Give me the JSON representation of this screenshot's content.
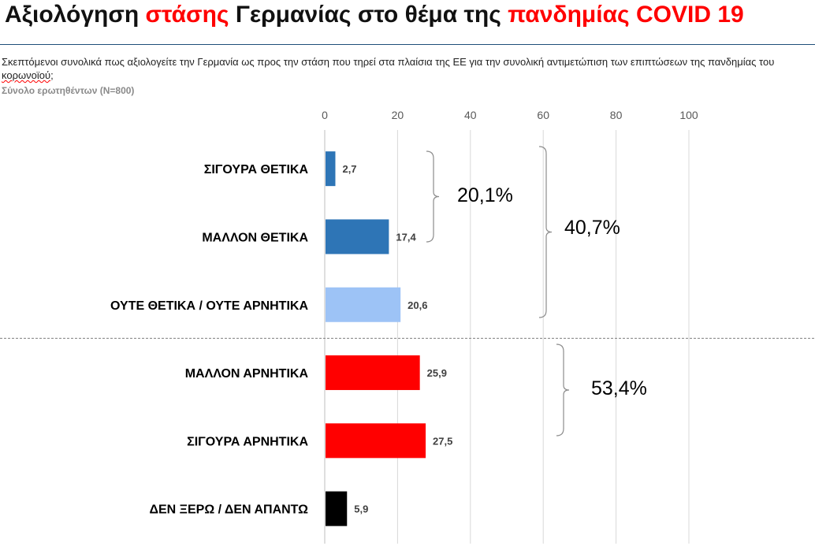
{
  "title": {
    "part1": "Αξιολόγηση ",
    "part2": "στάσης",
    "part3": " Γερμανίας στο θέμα της ",
    "part4": "πανδημίας COVID 19"
  },
  "question": {
    "text": "Σκεπτόμενοι συνολικά πως αξιολογείτε την Γερμανία ως προς την στάση που τηρεί στα πλαίσια της ΕΕ για την συνολική αντιμετώπιση των επιπτώσεων της πανδημίας του ",
    "underlined": "κορωνοϊού",
    "end": ";"
  },
  "base": "Σύνολο ερωτηθέντων (N=800)",
  "colors": {
    "title_red": "#ff0000",
    "dark_blue": "#2e75b6",
    "light_blue": "#9dc3f6",
    "red": "#ff0000",
    "black": "#000000"
  },
  "chart_data": {
    "type": "bar",
    "orientation": "horizontal",
    "categories": [
      "ΣΙΓΟΥΡΑ ΘΕΤΙΚΑ",
      "ΜΑΛΛΟΝ ΘΕΤΙΚΑ",
      "ΟΥΤΕ ΘΕΤΙΚΑ / ΟΥΤΕ ΑΡΝΗΤΙΚΑ",
      "ΜΑΛΛΟΝ ΑΡΝΗΤΙΚΑ",
      "ΣΙΓΟΥΡΑ ΑΡΝΗΤΙΚΑ",
      "ΔΕΝ ΞΕΡΩ / ΔΕΝ ΑΠΑΝΤΩ"
    ],
    "values": [
      2.7,
      17.4,
      20.6,
      25.9,
      27.5,
      5.9
    ],
    "value_labels": [
      "2,7",
      "17,4",
      "20,6",
      "25,9",
      "27,5",
      "5,9"
    ],
    "bar_colors": [
      "#2e75b6",
      "#2e75b6",
      "#9dc3f6",
      "#ff0000",
      "#ff0000",
      "#000000"
    ],
    "xlim": [
      0,
      100
    ],
    "xticks": [
      0,
      20,
      40,
      60,
      80,
      100
    ],
    "tick_labels": [
      "0",
      "20",
      "40",
      "60",
      "80",
      "100"
    ],
    "x_axis_position": "top",
    "grid": true,
    "annotations": [
      {
        "text": "20,1%",
        "from": 0,
        "to": 1
      },
      {
        "text": "40,7%",
        "from": 0,
        "to": 2
      },
      {
        "text": "53,4%",
        "from": 3,
        "to": 4
      }
    ]
  }
}
